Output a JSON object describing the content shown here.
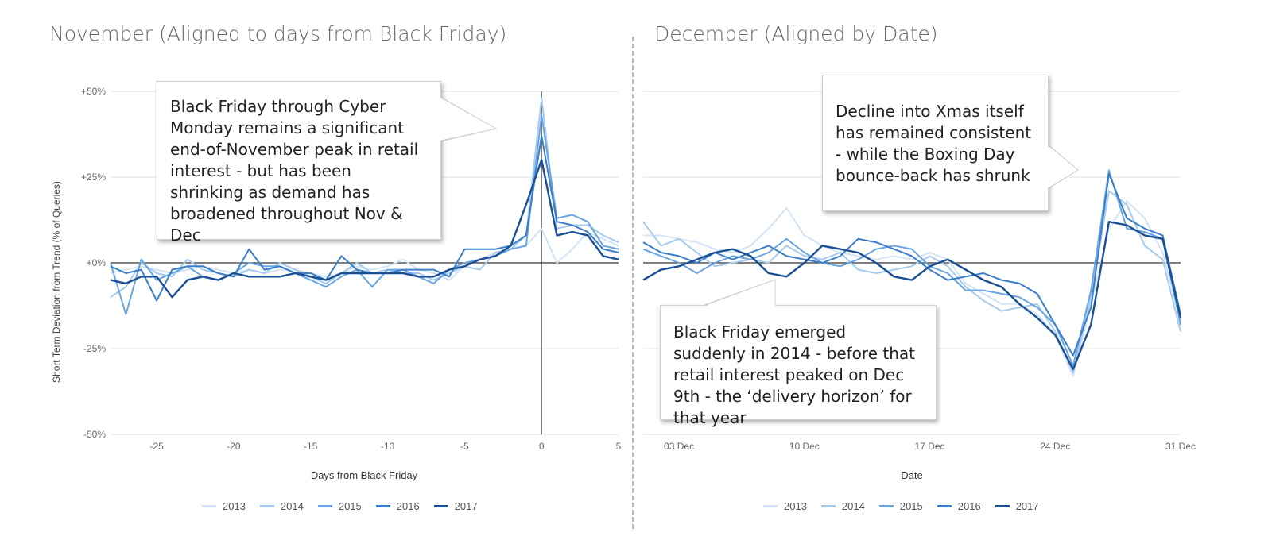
{
  "titles": {
    "left": "November (Aligned to days from Black Friday)",
    "right": "December (Aligned by Date)"
  },
  "y_axis_label": "Short Term Deviation from Trend (% of Queries)",
  "callouts": {
    "black_friday_cyber_monday": "Black Friday through Cyber Monday remains a significant end-of-November peak in retail interest - but has been shrinking as demand has broadened throughout Nov & Dec",
    "xmas_decline": "Decline into Xmas itself has remained consistent - while the Boxing Day bounce-back has shrunk",
    "black_friday_2014": "Black Friday emerged suddenly in 2014 - before that retail interest peaked on Dec 9th - the ‘delivery horizon’ for that year"
  },
  "series_colors": [
    "#d2e4f5",
    "#a6cbee",
    "#6aa5e1",
    "#3a7ec8",
    "#1a4f94"
  ],
  "chart_data": [
    {
      "type": "line",
      "title": "November (Aligned to days from Black Friday)",
      "xlabel": "Days from Black Friday",
      "ylabel": "Short Term Deviation from Trend (% of Queries)",
      "xlim": [
        -28,
        5
      ],
      "ylim": [
        -50,
        50
      ],
      "x_ticks": [
        "-25",
        "-20",
        "-15",
        "-10",
        "-5",
        "0",
        "5"
      ],
      "y_ticks": [
        "+50%",
        "+25%",
        "+0%",
        "-25%",
        "-50%"
      ],
      "legend": "bottom",
      "x": [
        -28,
        -27,
        -26,
        -25,
        -24,
        -23,
        -22,
        -21,
        -20,
        -19,
        -18,
        -17,
        -16,
        -15,
        -14,
        -13,
        -12,
        -11,
        -10,
        -9,
        -8,
        -7,
        -6,
        -5,
        -4,
        -3,
        -2,
        -1,
        0,
        1,
        2,
        3,
        4,
        5
      ],
      "series": [
        {
          "name": "2013",
          "values": [
            -3,
            -2,
            -1,
            -2,
            -3,
            -2,
            -1,
            -2,
            -3,
            -2,
            -3,
            -2,
            -2,
            -3,
            -4,
            -3,
            -1,
            -2,
            -1,
            1,
            -2,
            -3,
            -5,
            -1,
            1,
            3,
            4,
            5,
            10,
            0,
            4,
            9,
            7,
            5
          ]
        },
        {
          "name": "2014",
          "values": [
            -10,
            -7,
            0,
            -3,
            -4,
            1,
            -2,
            -3,
            -4,
            -2,
            -3,
            0,
            -2,
            -4,
            -6,
            -3,
            0,
            -3,
            -2,
            -3,
            -3,
            -5,
            -3,
            -1,
            -2,
            3,
            4,
            8,
            48,
            10,
            11,
            11,
            8,
            6
          ]
        },
        {
          "name": "2015",
          "values": [
            0,
            -15,
            1,
            -5,
            -3,
            -1,
            -4,
            -5,
            -3,
            0,
            -1,
            -1,
            -3,
            -5,
            -7,
            -4,
            -2,
            -7,
            -2,
            -2,
            -4,
            -6,
            -2,
            0,
            1,
            2,
            4,
            5,
            43,
            13,
            14,
            12,
            5,
            4
          ]
        },
        {
          "name": "2016",
          "values": [
            -1,
            -3,
            -2,
            -11,
            -2,
            -1,
            -1,
            -3,
            -4,
            4,
            -2,
            -1,
            -3,
            -3,
            -5,
            2,
            -2,
            -3,
            -3,
            -2,
            -2,
            -2,
            -4,
            4,
            4,
            4,
            5,
            8,
            37,
            12,
            11,
            9,
            4,
            3
          ]
        },
        {
          "name": "2017",
          "values": [
            -5,
            -6,
            -4,
            -4,
            -10,
            -5,
            -4,
            -5,
            -3,
            -4,
            -4,
            -4,
            -3,
            -4,
            -5,
            -3,
            -3,
            -3,
            -3,
            -3,
            -4,
            -4,
            -2,
            -1,
            1,
            2,
            5,
            17,
            30,
            8,
            9,
            8,
            2,
            1
          ]
        }
      ]
    },
    {
      "type": "line",
      "title": "December (Aligned by Date)",
      "xlabel": "Date",
      "ylabel": "",
      "xlim": [
        1,
        31
      ],
      "ylim": [
        -50,
        50
      ],
      "x_ticks": [
        "03 Dec",
        "10 Dec",
        "17 Dec",
        "24 Dec",
        "31 Dec"
      ],
      "x_tick_values": [
        3,
        10,
        17,
        24,
        31
      ],
      "legend": "bottom",
      "x": [
        1,
        2,
        3,
        4,
        5,
        6,
        7,
        8,
        9,
        10,
        11,
        12,
        13,
        14,
        15,
        16,
        17,
        18,
        19,
        20,
        21,
        22,
        23,
        24,
        25,
        26,
        27,
        28,
        29,
        30,
        31
      ],
      "series": [
        {
          "name": "2013",
          "values": [
            8,
            8,
            7,
            6,
            4,
            3,
            5,
            10,
            16,
            8,
            5,
            3,
            2,
            1,
            2,
            1,
            3,
            1,
            -6,
            -9,
            -12,
            -12,
            -15,
            -21,
            -33,
            -12,
            10,
            18,
            13,
            3,
            -17
          ]
        },
        {
          "name": "2014",
          "values": [
            12,
            5,
            7,
            3,
            -1,
            0,
            1,
            0,
            5,
            2,
            1,
            3,
            -2,
            -3,
            -2,
            -1,
            2,
            -1,
            -7,
            -11,
            -14,
            -13,
            -12,
            -20,
            -32,
            -10,
            21,
            17,
            5,
            1,
            -20
          ]
        },
        {
          "name": "2015",
          "values": [
            4,
            2,
            0,
            -3,
            0,
            2,
            1,
            3,
            7,
            3,
            0,
            -1,
            1,
            4,
            5,
            4,
            -1,
            -3,
            -8,
            -8,
            -9,
            -10,
            -13,
            -18,
            -30,
            -8,
            27,
            10,
            9,
            7,
            -18
          ]
        },
        {
          "name": "2016",
          "values": [
            6,
            3,
            2,
            0,
            3,
            1,
            3,
            5,
            2,
            1,
            0,
            2,
            7,
            6,
            4,
            2,
            -2,
            -5,
            -4,
            -3,
            -5,
            -6,
            -9,
            -18,
            -27,
            -13,
            26,
            13,
            10,
            8,
            -15
          ]
        },
        {
          "name": "2017",
          "values": [
            -5,
            -2,
            -1,
            1,
            3,
            4,
            2,
            -3,
            -4,
            0,
            5,
            4,
            3,
            0,
            -4,
            -5,
            -1,
            1,
            -2,
            -5,
            -7,
            -12,
            -16,
            -21,
            -31,
            -18,
            12,
            11,
            8,
            7,
            -16
          ]
        }
      ]
    }
  ]
}
